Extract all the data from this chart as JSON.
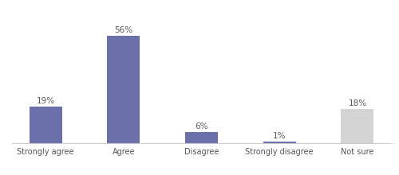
{
  "categories": [
    "Strongly agree",
    "Agree",
    "Disagree",
    "Strongly disagree",
    "Not sure"
  ],
  "values": [
    19,
    56,
    6,
    1,
    18
  ],
  "bar_colors": [
    "#6b6faa",
    "#6b6faa",
    "#6b6faa",
    "#6b6faa",
    "#d4d4d4"
  ],
  "label_fontsize": 7.5,
  "tick_fontsize": 7.0,
  "background_color": "#ffffff",
  "ylim": [
    0,
    68
  ],
  "bar_width": 0.42
}
